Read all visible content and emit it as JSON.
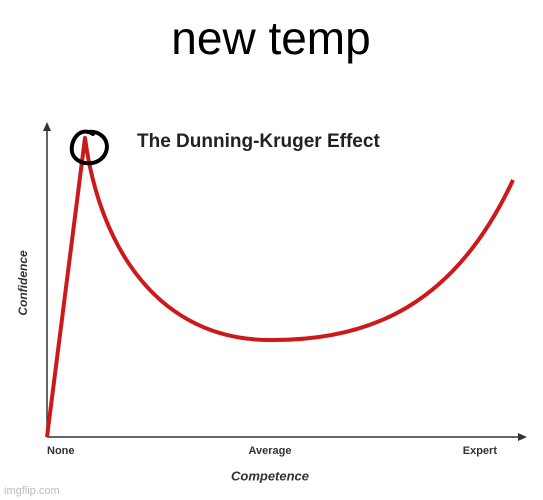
{
  "caption": "new temp",
  "chart": {
    "title": "The Dunning-Kruger Effect",
    "y_label": "Confidence",
    "x_label": "Competence",
    "x_labels": [
      "None",
      "Average",
      "Expert"
    ]
  },
  "watermark": "imgflip.com"
}
